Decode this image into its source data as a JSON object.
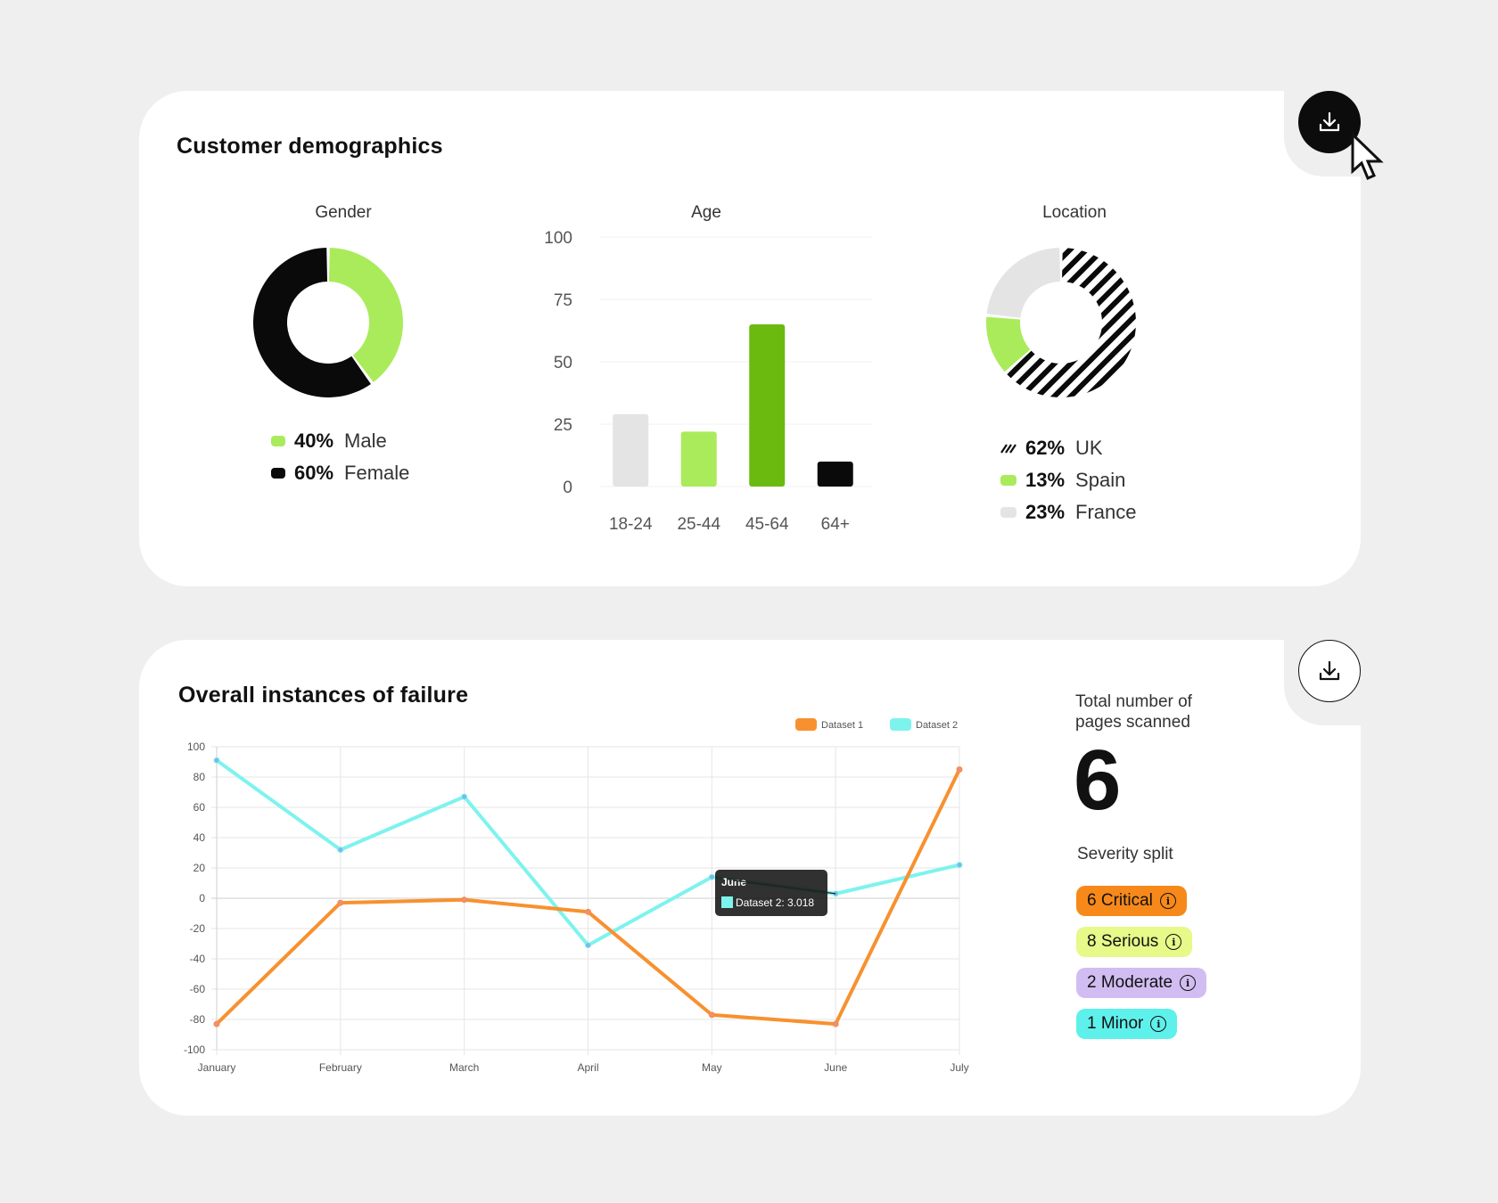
{
  "colors": {
    "green_light": "#aaeb5b",
    "green_dark": "#6aba10",
    "black": "#0a0a0a",
    "gray": "#e4e4e4",
    "orange": "#f7912f",
    "cyan": "#7df3ee",
    "critical": "#f7891a",
    "serious": "#e6f989",
    "moderate": "#d2bdf2",
    "minor": "#5ef1ec"
  },
  "demographics": {
    "title": "Customer demographics",
    "download_icon": "download-icon",
    "gender": {
      "title": "Gender",
      "legend": [
        {
          "pct": "40%",
          "label": "Male",
          "color": "#aaeb5b"
        },
        {
          "pct": "60%",
          "label": "Female",
          "color": "#0a0a0a"
        }
      ]
    },
    "age": {
      "title": "Age"
    },
    "location": {
      "title": "Location",
      "legend": [
        {
          "pct": "62%",
          "label": "UK",
          "pattern": "hatched"
        },
        {
          "pct": "13%",
          "label": "Spain",
          "color": "#aaeb5b"
        },
        {
          "pct": "23%",
          "label": "France",
          "color": "#e4e4e4"
        }
      ]
    }
  },
  "failure": {
    "title": "Overall instances of failure",
    "download_icon": "download-icon",
    "tooltip": {
      "title": "June",
      "label": "Dataset 2: 3.018"
    }
  },
  "summary": {
    "pages_label": "Total number of pages scanned",
    "pages_value": "6",
    "severity_label": "Severity split",
    "badges": [
      {
        "label": "6 Critical",
        "color": "#f7891a"
      },
      {
        "label": "8 Serious",
        "color": "#e6f989"
      },
      {
        "label": "2 Moderate",
        "color": "#d2bdf2"
      },
      {
        "label": "1 Minor",
        "color": "#5ef1ec"
      }
    ]
  },
  "chart_data": [
    {
      "type": "pie",
      "title": "Gender",
      "categories": [
        "Male",
        "Female"
      ],
      "values": [
        40,
        60
      ],
      "colors": [
        "#aaeb5b",
        "#0a0a0a"
      ],
      "legend": "bottom"
    },
    {
      "type": "bar",
      "title": "Age",
      "categories": [
        "18-24",
        "25-44",
        "45-64",
        "64+"
      ],
      "values": [
        29,
        22,
        65,
        10
      ],
      "colors": [
        "#e4e4e4",
        "#aaeb5b",
        "#6aba10",
        "#0a0a0a"
      ],
      "ylim": [
        0,
        100
      ],
      "yticks": [
        0,
        25,
        50,
        75,
        100
      ],
      "grid": true
    },
    {
      "type": "pie",
      "title": "Location",
      "categories": [
        "UK",
        "Spain",
        "France"
      ],
      "values": [
        62,
        13,
        23
      ],
      "colors": [
        "hatched",
        "#aaeb5b",
        "#e4e4e4"
      ],
      "legend": "bottom"
    },
    {
      "type": "line",
      "title": "Overall instances of failure",
      "categories": [
        "January",
        "February",
        "March",
        "April",
        "May",
        "June",
        "July"
      ],
      "series": [
        {
          "name": "Dataset 1",
          "values": [
            -83,
            -3,
            -1,
            -9,
            -77,
            -83,
            85
          ],
          "color": "#f7912f"
        },
        {
          "name": "Dataset 2",
          "values": [
            91,
            32,
            67,
            -31,
            14,
            3.018,
            22
          ],
          "color": "#7df3ee"
        }
      ],
      "ylim": [
        -100,
        100
      ],
      "yticks": [
        -100,
        -80,
        -60,
        -40,
        -20,
        0,
        20,
        40,
        60,
        80,
        100
      ],
      "grid": true,
      "legend": "top-right"
    }
  ]
}
